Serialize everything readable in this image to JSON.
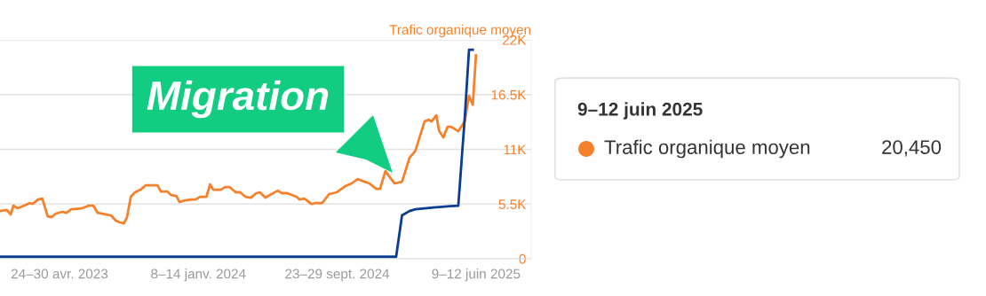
{
  "chart_data": {
    "type": "line",
    "ylabel": "Trafic organique moyen",
    "xlim": [
      "2023-01-03",
      "2025-09-20"
    ],
    "xticks": [
      {
        "value": "2023-04-24",
        "label": "24–30 avr. 2023"
      },
      {
        "value": "2024-01-08",
        "label": "8–14 janv. 2024"
      },
      {
        "value": "2024-09-23",
        "label": "23–29 sept. 2024"
      },
      {
        "value": "2025-06-09",
        "label": "9–12 juin 2025"
      }
    ],
    "ylim": [
      0,
      22000
    ],
    "yticks": [
      0,
      {
        "value": 5500,
        "label": "5.5K"
      },
      {
        "value": 11000,
        "label": "11K"
      },
      {
        "value": 16500,
        "label": "16.5K"
      },
      {
        "value": 22000,
        "label": "22K"
      }
    ],
    "grid": "y",
    "series": [
      {
        "name": "Trafic organique moyen",
        "color": "#f7812b",
        "x": [
          "2023-01-03",
          "2023-01-16",
          "2023-01-23",
          "2023-01-28",
          "2023-02-05",
          "2023-02-17",
          "2023-02-27",
          "2023-03-05",
          "2023-03-15",
          "2023-03-23",
          "2023-04-02",
          "2023-04-09",
          "2023-04-17",
          "2023-04-29",
          "2023-05-07",
          "2023-05-16",
          "2023-06-05",
          "2023-06-18",
          "2023-06-26",
          "2023-07-04",
          "2023-07-21",
          "2023-07-29",
          "2023-08-07",
          "2023-08-15",
          "2023-08-22",
          "2023-08-28",
          "2023-09-04",
          "2023-09-12",
          "2023-09-22",
          "2023-10-02",
          "2023-10-12",
          "2023-10-24",
          "2023-10-30",
          "2023-11-11",
          "2023-11-18",
          "2023-11-28",
          "2023-12-04",
          "2023-12-14",
          "2023-12-26",
          "2024-01-03",
          "2024-01-11",
          "2024-01-23",
          "2024-01-30",
          "2024-02-05",
          "2024-02-19",
          "2024-02-27",
          "2024-03-06",
          "2024-03-18",
          "2024-03-26",
          "2024-04-05",
          "2024-04-15",
          "2024-04-25",
          "2024-05-02",
          "2024-05-12",
          "2024-05-15",
          "2024-06-04",
          "2024-06-12",
          "2024-06-22",
          "2024-07-09",
          "2024-07-15",
          "2024-07-24",
          "2024-08-06",
          "2024-08-14",
          "2024-08-26",
          "2024-09-08",
          "2024-09-22",
          "2024-10-08",
          "2024-10-20",
          "2024-10-31",
          "2024-11-09",
          "2024-11-22",
          "2024-12-05",
          "2024-12-12",
          "2024-12-22",
          "2025-01-08",
          "2025-01-22",
          "2025-02-05",
          "2025-02-16",
          "2025-03-05",
          "2025-03-13",
          "2025-03-18",
          "2025-03-27",
          "2025-04-01",
          "2025-04-09",
          "2025-04-17",
          "2025-04-24",
          "2025-05-07",
          "2025-05-19",
          "2025-05-27",
          "2025-06-03",
          "2025-06-09"
        ],
        "values": [
          4800,
          4900,
          4450,
          5340,
          5070,
          5340,
          5600,
          5520,
          5960,
          6050,
          4270,
          4180,
          4540,
          4720,
          4630,
          4980,
          5070,
          5340,
          5340,
          4630,
          4450,
          4360,
          3830,
          3650,
          3560,
          4180,
          6230,
          6680,
          6940,
          7390,
          7390,
          7390,
          6760,
          6760,
          6410,
          6320,
          5700,
          5870,
          5960,
          5960,
          6230,
          6230,
          7480,
          6940,
          6940,
          7210,
          7210,
          6680,
          6680,
          6230,
          6140,
          6590,
          6680,
          6140,
          6230,
          6850,
          6590,
          6590,
          6230,
          5960,
          6050,
          5520,
          5610,
          5610,
          6500,
          6680,
          7300,
          7570,
          8010,
          7830,
          7570,
          7030,
          7030,
          8810,
          7570,
          7740,
          10150,
          10860,
          13800,
          13970,
          13800,
          14420,
          12900,
          12190,
          13260,
          13260,
          12820,
          13800,
          16380,
          15490,
          20450
        ]
      },
      {
        "color": "#0b3d91",
        "x": [
          "2023-01-03",
          "2025-01-11",
          "2025-01-22",
          "2025-02-05",
          "2025-02-16",
          "2025-03-22",
          "2025-05-07",
          "2025-05-19",
          "2025-05-27",
          "2025-06-03"
        ],
        "values": [
          200,
          200,
          4360,
          4800,
          4980,
          5160,
          5340,
          14150,
          21000,
          21000
        ]
      }
    ],
    "annotations": [
      "Migration",
      "9–12 juin 2025",
      "20,450"
    ]
  }
}
